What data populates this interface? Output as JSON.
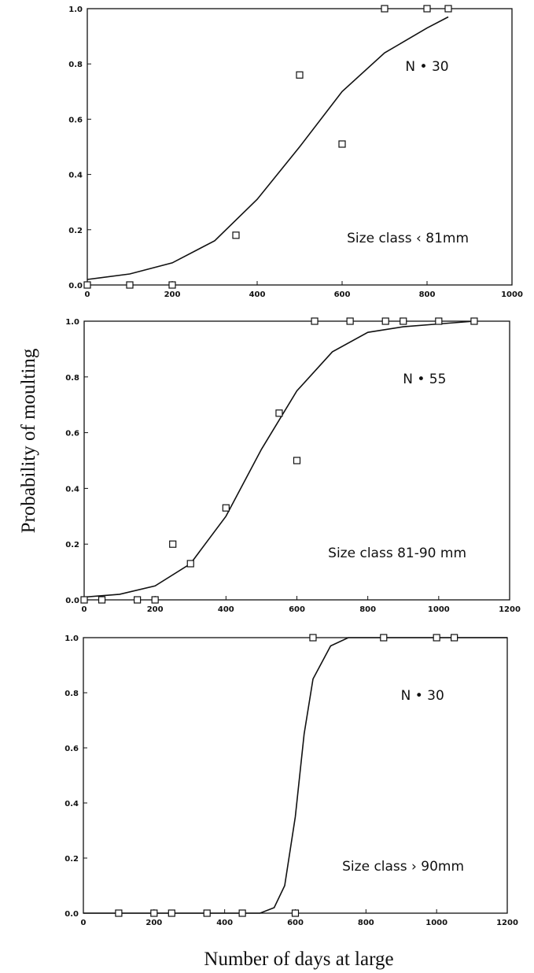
{
  "figure": {
    "ylabel": "Probability of moulting",
    "xlabel": "Number of days at large"
  },
  "chart_data": [
    {
      "type": "scatter",
      "annotation_n": "N • 30",
      "annotation_size": "Size class ‹ 81mm",
      "xlim": [
        0,
        1000
      ],
      "ylim": [
        0,
        1
      ],
      "xticks": [
        0,
        200,
        400,
        600,
        800,
        1000
      ],
      "xtick_labels": [
        "0",
        "200",
        "400",
        "600",
        "800",
        "1000"
      ],
      "yticks": [
        0,
        0.2,
        0.4,
        0.6,
        0.8,
        1.0
      ],
      "ytick_labels": [
        "0.0",
        "0.2",
        "0.4",
        "0.6",
        "0.8",
        "1.0"
      ],
      "points": [
        {
          "x": 0,
          "y": 0.0
        },
        {
          "x": 100,
          "y": 0.0
        },
        {
          "x": 200,
          "y": 0.0
        },
        {
          "x": 350,
          "y": 0.18
        },
        {
          "x": 500,
          "y": 0.76
        },
        {
          "x": 600,
          "y": 0.51
        },
        {
          "x": 700,
          "y": 1.0
        },
        {
          "x": 800,
          "y": 1.0
        },
        {
          "x": 850,
          "y": 1.0
        }
      ],
      "curve": [
        {
          "x": 0,
          "y": 0.02
        },
        {
          "x": 100,
          "y": 0.04
        },
        {
          "x": 200,
          "y": 0.08
        },
        {
          "x": 300,
          "y": 0.16
        },
        {
          "x": 400,
          "y": 0.31
        },
        {
          "x": 500,
          "y": 0.5
        },
        {
          "x": 600,
          "y": 0.7
        },
        {
          "x": 700,
          "y": 0.84
        },
        {
          "x": 800,
          "y": 0.93
        },
        {
          "x": 850,
          "y": 0.97
        }
      ]
    },
    {
      "type": "scatter",
      "annotation_n": "N • 55",
      "annotation_size": "Size class 81-90 mm",
      "xlim": [
        0,
        1200
      ],
      "ylim": [
        0,
        1
      ],
      "xticks": [
        0,
        200,
        400,
        600,
        800,
        1000,
        1200
      ],
      "xtick_labels": [
        "0",
        "200",
        "400",
        "600",
        "800",
        "1000",
        "1200"
      ],
      "yticks": [
        0,
        0.2,
        0.4,
        0.6,
        0.8,
        1.0
      ],
      "ytick_labels": [
        "0.0",
        "0.2",
        "0.4",
        "0.6",
        "0.8",
        "1.0"
      ],
      "points": [
        {
          "x": 0,
          "y": 0.0
        },
        {
          "x": 50,
          "y": 0.0
        },
        {
          "x": 150,
          "y": 0.0
        },
        {
          "x": 200,
          "y": 0.0
        },
        {
          "x": 250,
          "y": 0.2
        },
        {
          "x": 300,
          "y": 0.13
        },
        {
          "x": 400,
          "y": 0.33
        },
        {
          "x": 550,
          "y": 0.67
        },
        {
          "x": 600,
          "y": 0.5
        },
        {
          "x": 650,
          "y": 1.0
        },
        {
          "x": 750,
          "y": 1.0
        },
        {
          "x": 850,
          "y": 1.0
        },
        {
          "x": 900,
          "y": 1.0
        },
        {
          "x": 1000,
          "y": 1.0
        },
        {
          "x": 1100,
          "y": 1.0
        }
      ],
      "curve": [
        {
          "x": 0,
          "y": 0.01
        },
        {
          "x": 100,
          "y": 0.02
        },
        {
          "x": 200,
          "y": 0.05
        },
        {
          "x": 300,
          "y": 0.13
        },
        {
          "x": 400,
          "y": 0.3
        },
        {
          "x": 500,
          "y": 0.54
        },
        {
          "x": 600,
          "y": 0.75
        },
        {
          "x": 700,
          "y": 0.89
        },
        {
          "x": 800,
          "y": 0.96
        },
        {
          "x": 900,
          "y": 0.98
        },
        {
          "x": 1000,
          "y": 0.99
        },
        {
          "x": 1100,
          "y": 1.0
        }
      ]
    },
    {
      "type": "scatter",
      "annotation_n": "N • 30",
      "annotation_size": "Size class › 90mm",
      "xlim": [
        0,
        1200
      ],
      "ylim": [
        0,
        1
      ],
      "xticks": [
        0,
        200,
        400,
        600,
        800,
        1000,
        1200
      ],
      "xtick_labels": [
        "0",
        "200",
        "400",
        "600",
        "800",
        "1000",
        "1200"
      ],
      "yticks": [
        0,
        0.2,
        0.4,
        0.6,
        0.8,
        1.0
      ],
      "ytick_labels": [
        "0.0",
        "0.2",
        "0.4",
        "0.6",
        "0.8",
        "1.0"
      ],
      "points": [
        {
          "x": 100,
          "y": 0.0
        },
        {
          "x": 200,
          "y": 0.0
        },
        {
          "x": 250,
          "y": 0.0
        },
        {
          "x": 350,
          "y": 0.0
        },
        {
          "x": 450,
          "y": 0.0
        },
        {
          "x": 600,
          "y": 0.0
        },
        {
          "x": 650,
          "y": 1.0
        },
        {
          "x": 850,
          "y": 1.0
        },
        {
          "x": 1000,
          "y": 1.0
        },
        {
          "x": 1050,
          "y": 1.0
        }
      ],
      "curve": [
        {
          "x": 0,
          "y": 0.0
        },
        {
          "x": 500,
          "y": 0.0
        },
        {
          "x": 540,
          "y": 0.02
        },
        {
          "x": 570,
          "y": 0.1
        },
        {
          "x": 600,
          "y": 0.35
        },
        {
          "x": 625,
          "y": 0.65
        },
        {
          "x": 650,
          "y": 0.85
        },
        {
          "x": 700,
          "y": 0.97
        },
        {
          "x": 750,
          "y": 1.0
        },
        {
          "x": 1200,
          "y": 1.0
        }
      ]
    }
  ]
}
